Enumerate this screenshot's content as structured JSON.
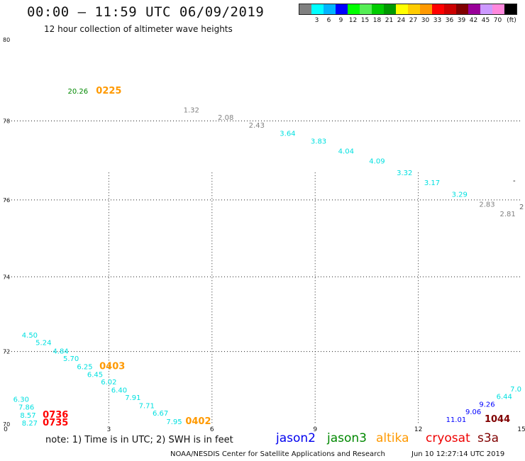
{
  "header": {
    "title": "00:00 – 11:59 UTC 06/09/2019",
    "subtitle": "12 hour collection of altimeter wave heights"
  },
  "legend": {
    "unit": "(ft)",
    "levels": [
      {
        "label": "",
        "color": "#808080"
      },
      {
        "label": "3",
        "color": "#00ffff"
      },
      {
        "label": "6",
        "color": "#00b4ff"
      },
      {
        "label": "9",
        "color": "#0000ff"
      },
      {
        "label": "12",
        "color": "#00ff00"
      },
      {
        "label": "15",
        "color": "#55ee55"
      },
      {
        "label": "18",
        "color": "#00cc00"
      },
      {
        "label": "21",
        "color": "#009900"
      },
      {
        "label": "24",
        "color": "#ffff00"
      },
      {
        "label": "27",
        "color": "#ffcc00"
      },
      {
        "label": "30",
        "color": "#ff9900"
      },
      {
        "label": "33",
        "color": "#ff0000"
      },
      {
        "label": "36",
        "color": "#cc0000"
      },
      {
        "label": "39",
        "color": "#800000"
      },
      {
        "label": "42",
        "color": "#990099"
      },
      {
        "label": "45",
        "color": "#cc99ff"
      },
      {
        "label": "70",
        "color": "#ff88dd"
      },
      {
        "label": "",
        "color": "#000000"
      }
    ]
  },
  "map_data": {
    "lon_ticks": [
      "0",
      "3",
      "6",
      "9",
      "12",
      "15"
    ],
    "lat_ticks": [
      "70",
      "72",
      "74",
      "76",
      "78",
      "80"
    ],
    "lon_range": [
      0,
      15
    ],
    "lat_range": [
      70,
      80
    ],
    "edge_marks": [
      "-",
      "2"
    ],
    "points": [
      {
        "lon": 2.1,
        "lat": 78.75,
        "text": "20.26",
        "color": "#008800"
      },
      {
        "lon": 3.0,
        "lat": 78.75,
        "text": "0225",
        "color": "#ff9900",
        "bold": true
      },
      {
        "lon": 5.4,
        "lat": 78.28,
        "text": "1.32",
        "color": "#808080"
      },
      {
        "lon": 6.4,
        "lat": 78.1,
        "text": "2.08",
        "color": "#808080"
      },
      {
        "lon": 7.3,
        "lat": 77.9,
        "text": "2.43",
        "color": "#808080"
      },
      {
        "lon": 8.2,
        "lat": 77.7,
        "text": "3.64",
        "color": "#00e0e0"
      },
      {
        "lon": 9.1,
        "lat": 77.5,
        "text": "3.83",
        "color": "#00e0e0"
      },
      {
        "lon": 9.9,
        "lat": 77.25,
        "text": "4.04",
        "color": "#00e0e0"
      },
      {
        "lon": 10.8,
        "lat": 77.0,
        "text": "4.09",
        "color": "#00e0e0"
      },
      {
        "lon": 11.6,
        "lat": 76.7,
        "text": "3.32",
        "color": "#00e0e0"
      },
      {
        "lon": 12.4,
        "lat": 76.45,
        "text": "3.17",
        "color": "#00e0e0"
      },
      {
        "lon": 13.2,
        "lat": 76.15,
        "text": "3.29",
        "color": "#00e0e0"
      },
      {
        "lon": 14.0,
        "lat": 75.9,
        "text": "2.83",
        "color": "#808080"
      },
      {
        "lon": 14.6,
        "lat": 75.65,
        "text": "2.81",
        "color": "#808080"
      },
      {
        "lon": 0.7,
        "lat": 72.45,
        "text": "4.50",
        "color": "#00e0e0"
      },
      {
        "lon": 1.1,
        "lat": 72.25,
        "text": "5.24",
        "color": "#00e0e0"
      },
      {
        "lon": 1.6,
        "lat": 72.02,
        "text": "4.84",
        "color": "#00e0e0"
      },
      {
        "lon": 1.9,
        "lat": 71.82,
        "text": "5.70",
        "color": "#00e0e0"
      },
      {
        "lon": 2.3,
        "lat": 71.6,
        "text": "6.25",
        "color": "#00e0e0"
      },
      {
        "lon": 3.1,
        "lat": 71.6,
        "text": "0403",
        "color": "#ff9900",
        "bold": true
      },
      {
        "lon": 2.6,
        "lat": 71.38,
        "text": "6.45",
        "color": "#00e0e0"
      },
      {
        "lon": 3.0,
        "lat": 71.18,
        "text": "6.02",
        "color": "#00e0e0"
      },
      {
        "lon": 3.3,
        "lat": 70.96,
        "text": "6.40",
        "color": "#00e0e0"
      },
      {
        "lon": 3.7,
        "lat": 70.75,
        "text": "7.91",
        "color": "#00e0e0"
      },
      {
        "lon": 4.1,
        "lat": 70.52,
        "text": "7.71",
        "color": "#00e0e0"
      },
      {
        "lon": 4.5,
        "lat": 70.32,
        "text": "6.67",
        "color": "#00e0e0"
      },
      {
        "lon": 4.9,
        "lat": 70.08,
        "text": "7.95",
        "color": "#00e0e0"
      },
      {
        "lon": 5.6,
        "lat": 70.08,
        "text": "0402",
        "color": "#ff9900",
        "bold": true
      },
      {
        "lon": 0.45,
        "lat": 70.7,
        "text": "6.30",
        "color": "#00e0e0"
      },
      {
        "lon": 0.6,
        "lat": 70.48,
        "text": "7.86",
        "color": "#00e0e0"
      },
      {
        "lon": 0.65,
        "lat": 70.26,
        "text": "8.57",
        "color": "#00e0e0"
      },
      {
        "lon": 0.7,
        "lat": 70.04,
        "text": "8.27",
        "color": "#00e0e0"
      },
      {
        "lon": 1.45,
        "lat": 70.26,
        "text": "0736",
        "color": "#ff0000",
        "bold": true
      },
      {
        "lon": 1.45,
        "lat": 70.04,
        "text": "0735",
        "color": "#ff0000",
        "bold": true
      },
      {
        "lon": 15.0,
        "lat": 70.98,
        "text": "7.0",
        "color": "#00e0e0"
      },
      {
        "lon": 14.5,
        "lat": 70.78,
        "text": "6.44",
        "color": "#00e0e0"
      },
      {
        "lon": 14.0,
        "lat": 70.56,
        "text": "9.26",
        "color": "#0000ff"
      },
      {
        "lon": 13.6,
        "lat": 70.36,
        "text": "9.06",
        "color": "#0000ff"
      },
      {
        "lon": 13.1,
        "lat": 70.14,
        "text": "11.01",
        "color": "#0000ff"
      },
      {
        "lon": 14.3,
        "lat": 70.14,
        "text": "1044",
        "color": "#800000",
        "bold": true
      }
    ]
  },
  "footer": {
    "note": "note:  1) Time is in UTC;  2) SWH is in feet",
    "satellites": [
      {
        "name": "jason2",
        "color": "#0000ee"
      },
      {
        "name": "jason3",
        "color": "#008800"
      },
      {
        "name": "altika",
        "color": "#ff9900"
      },
      {
        "name": "cryosat",
        "color": "#ee0000"
      },
      {
        "name": "s3a",
        "color": "#800000"
      }
    ],
    "credit": "NOAA/NESDIS Center for Satellite Applications and Research",
    "timestamp": "Jun 10 12:27:14 UTC 2019"
  }
}
